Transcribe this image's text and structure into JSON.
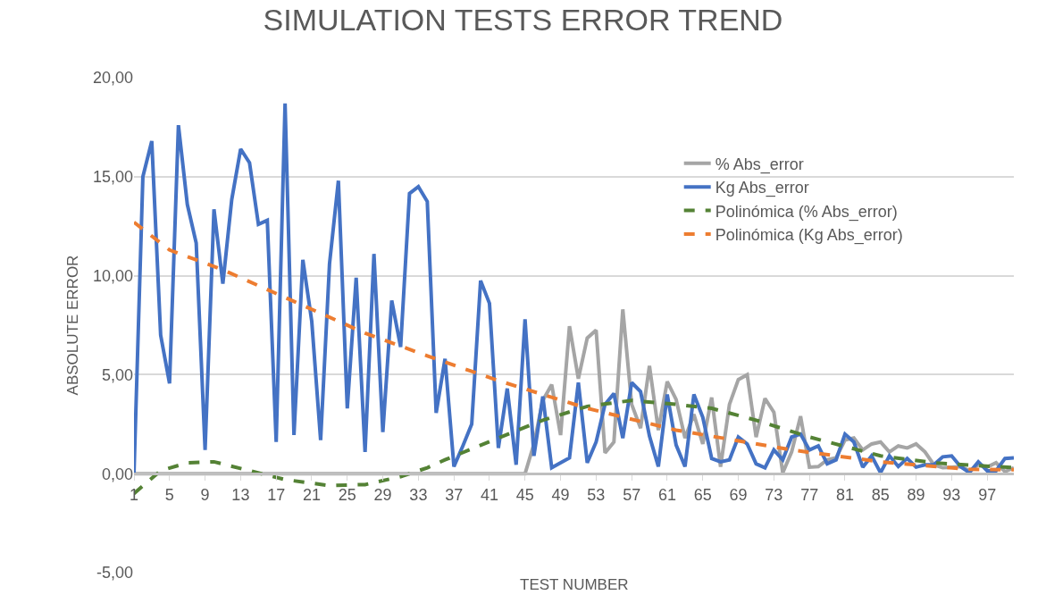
{
  "chart_data": {
    "type": "line",
    "title": "SIMULATION TESTS ERROR TREND",
    "xlabel": "TEST NUMBER",
    "ylabel": "ABSOLUTE ERROR",
    "x": [
      1,
      2,
      3,
      4,
      5,
      6,
      7,
      8,
      9,
      10,
      11,
      12,
      13,
      14,
      15,
      16,
      17,
      18,
      19,
      20,
      21,
      22,
      23,
      24,
      25,
      26,
      27,
      28,
      29,
      30,
      31,
      32,
      33,
      34,
      35,
      36,
      37,
      38,
      39,
      40,
      41,
      42,
      43,
      44,
      45,
      46,
      47,
      48,
      49,
      50,
      51,
      52,
      53,
      54,
      55,
      56,
      57,
      58,
      59,
      60,
      61,
      62,
      63,
      64,
      65,
      66,
      67,
      68,
      69,
      70,
      71,
      72,
      73,
      74,
      75,
      76,
      77,
      78,
      79,
      80,
      81,
      82,
      83,
      84,
      85,
      86,
      87,
      88,
      89,
      90,
      91,
      92,
      93,
      94,
      95,
      96,
      97,
      98,
      99,
      100
    ],
    "series": [
      {
        "name": "% Abs_error",
        "color": "#a5a5a5",
        "line_style": "solid",
        "values": [
          0,
          0,
          0,
          0,
          0,
          0,
          0,
          0,
          0,
          0,
          0,
          0,
          0,
          0,
          0,
          0,
          0,
          0,
          0,
          0,
          0,
          0,
          0,
          0,
          0,
          0,
          0,
          0,
          0,
          0,
          0,
          0,
          0,
          0,
          0,
          0,
          0,
          0,
          0,
          0,
          0,
          0,
          0,
          0,
          0,
          1.5,
          3.7,
          4.5,
          1.95,
          7.45,
          4.8,
          6.85,
          7.25,
          1.05,
          1.6,
          8.3,
          3.5,
          2.3,
          5.45,
          2.2,
          4.65,
          3.75,
          1.8,
          3.0,
          1.5,
          3.85,
          0.35,
          3.5,
          4.75,
          5.0,
          1.85,
          3.8,
          3.1,
          0.05,
          1.1,
          2.9,
          0.33,
          0.36,
          0.7,
          0.8,
          1.7,
          1.8,
          1.2,
          1.5,
          1.6,
          1.1,
          1.4,
          1.3,
          1.5,
          1.1,
          0.45,
          0.3,
          0.33,
          0.36,
          0.15,
          0.45,
          0.33,
          0.55,
          0.1,
          0.3
        ]
      },
      {
        "name": "Kg Abs_error",
        "color": "#4472c4",
        "line_style": "solid",
        "values": [
          0,
          15.0,
          16.8,
          7.0,
          4.56,
          17.6,
          13.6,
          11.65,
          1.2,
          13.35,
          9.6,
          13.85,
          16.4,
          15.7,
          12.6,
          12.8,
          1.6,
          18.7,
          1.95,
          10.8,
          7.7,
          1.7,
          10.6,
          14.8,
          3.3,
          9.9,
          1.1,
          11.1,
          2.1,
          8.75,
          6.4,
          14.15,
          14.5,
          13.75,
          3.07,
          5.8,
          0.36,
          1.4,
          2.5,
          9.75,
          8.6,
          1.3,
          4.3,
          0.45,
          7.8,
          0.9,
          3.9,
          0.3,
          0.55,
          0.8,
          4.6,
          0.55,
          1.6,
          3.5,
          4.05,
          1.8,
          4.6,
          4.15,
          1.9,
          0.36,
          4.0,
          1.45,
          0.36,
          4.0,
          2.85,
          0.77,
          0.6,
          0.7,
          1.85,
          1.5,
          0.5,
          0.3,
          1.2,
          0.7,
          1.85,
          2.0,
          1.2,
          1.4,
          0.5,
          0.7,
          2.0,
          1.6,
          0.33,
          0.9,
          0.05,
          0.9,
          0.36,
          0.77,
          0.33,
          0.45,
          0.45,
          0.85,
          0.9,
          0.36,
          0.05,
          0.6,
          0.15,
          0.15,
          0.77,
          0.8
        ]
      },
      {
        "name": "Polinómica (% Abs_error)",
        "color": "#548235",
        "line_style": "dashed",
        "x": [
          1,
          4,
          7,
          10,
          14,
          18,
          23,
          27,
          31,
          34,
          36,
          42,
          47,
          52,
          57,
          62,
          66,
          71,
          77,
          85,
          91,
          100
        ],
        "values": [
          -1.0,
          0.15,
          0.55,
          0.6,
          0.15,
          -0.3,
          -0.6,
          -0.55,
          -0.15,
          0.3,
          0.7,
          1.8,
          2.7,
          3.4,
          3.7,
          3.5,
          3.3,
          2.7,
          1.85,
          0.9,
          0.55,
          0.3
        ]
      },
      {
        "name": "Polinómica (Kg Abs_error)",
        "color": "#ed7d31",
        "line_style": "dashed",
        "x": [
          1,
          5,
          11,
          19,
          27,
          34,
          42,
          52,
          62,
          75,
          85,
          95,
          100
        ],
        "values": [
          12.7,
          11.3,
          10.3,
          8.7,
          7.1,
          5.95,
          4.7,
          3.3,
          2.2,
          1.2,
          0.6,
          0.22,
          0.2
        ]
      }
    ],
    "xlim": [
      1,
      100
    ],
    "xticks": [
      1,
      5,
      9,
      13,
      17,
      21,
      25,
      29,
      33,
      37,
      41,
      45,
      49,
      53,
      57,
      61,
      65,
      69,
      73,
      77,
      81,
      85,
      89,
      93,
      97
    ],
    "ylim": [
      -5,
      20
    ],
    "yticks": [
      {
        "value": -5,
        "label": "-5,00"
      },
      {
        "value": 0,
        "label": "0,00"
      },
      {
        "value": 5,
        "label": "5,00"
      },
      {
        "value": 10,
        "label": "10,00"
      },
      {
        "value": 15,
        "label": "15,00"
      },
      {
        "value": 20,
        "label": "20,00"
      }
    ],
    "grid": "y",
    "legend": "top right",
    "marker": "none"
  }
}
